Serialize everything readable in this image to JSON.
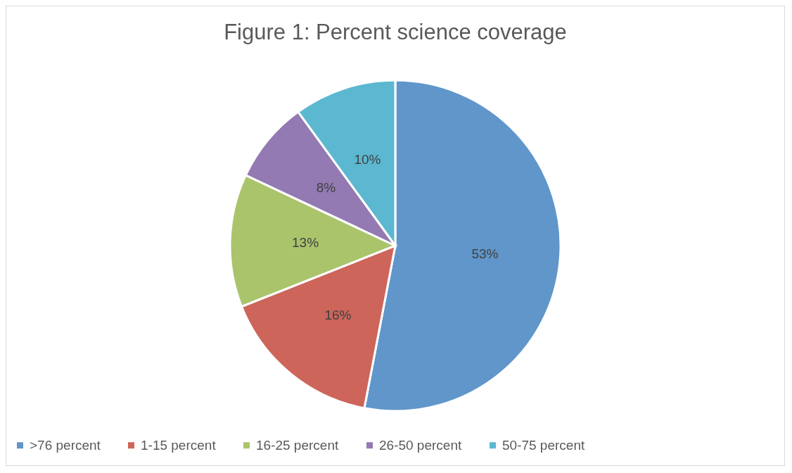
{
  "chart_data": {
    "type": "pie",
    "title": "Figure 1: Percent science coverage",
    "categories": [
      ">76 percent",
      "1-15 percent",
      "16-25 percent",
      "26-50 percent",
      "50-75 percent"
    ],
    "values": [
      53,
      16,
      13,
      8,
      10
    ],
    "colors": [
      "#6096ca",
      "#cd655a",
      "#aac46c",
      "#937ab2",
      "#5cb8d1"
    ],
    "value_labels": [
      "53%",
      "16%",
      "13%",
      "8%",
      "10%"
    ],
    "legend": "bottom"
  }
}
